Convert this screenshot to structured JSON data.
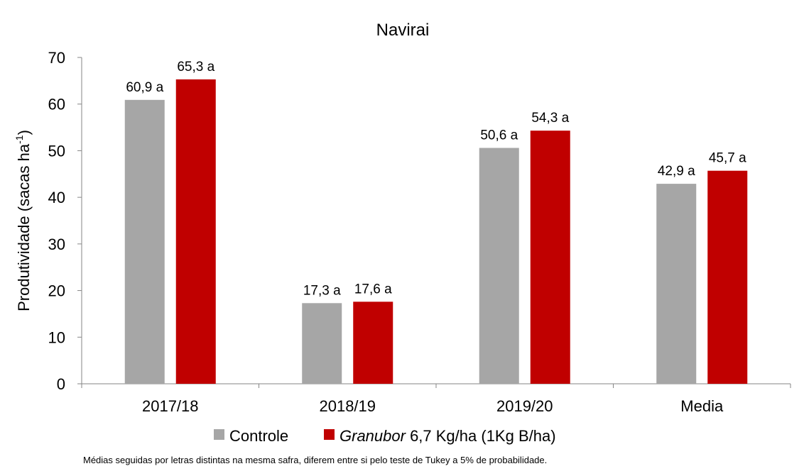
{
  "chart_data": {
    "type": "bar",
    "title": "Navirai",
    "ylabel": "Produtividade (sacas ha-1)",
    "ylabel_main": "Produtividade (sacas ha",
    "ylabel_sup": "-1",
    "ylabel_end": ")",
    "ylim": [
      0,
      70
    ],
    "yticks": [
      0,
      10,
      20,
      30,
      40,
      50,
      60,
      70
    ],
    "grid": false,
    "legend_position": "bottom",
    "categories": [
      "2017/18",
      "2018/19",
      "2019/20",
      "Media"
    ],
    "series": [
      {
        "name": "Controle",
        "name_italic": "",
        "name_rest": "Controle",
        "color": "#a6a6a6",
        "values": [
          60.9,
          17.3,
          50.6,
          42.9
        ],
        "labels": [
          "60,9 a",
          "17,3 a",
          "50,6 a",
          "42,9 a"
        ]
      },
      {
        "name": "Granubor 6,7 Kg/ha (1Kg B/ha)",
        "name_italic": "Granubor",
        "name_rest": " 6,7 Kg/ha (1Kg B/ha)",
        "color": "#c00000",
        "values": [
          65.3,
          17.6,
          54.3,
          45.7
        ],
        "labels": [
          "65,3 a",
          "17,6 a",
          "54,3 a",
          "45,7 a"
        ]
      }
    ]
  },
  "footnote": "Médias seguidas por letras distintas na mesma safra, diferem entre si pelo teste de Tukey a 5% de probabilidade."
}
